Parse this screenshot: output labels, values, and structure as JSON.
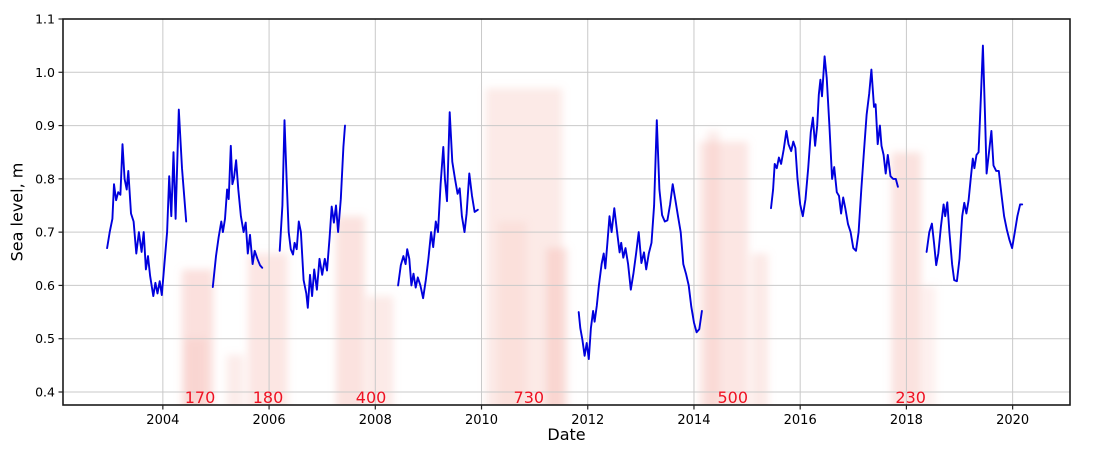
{
  "figure": {
    "background": "#ffffff"
  },
  "chart_data": {
    "type": "line",
    "title": "",
    "xlabel": "Date",
    "ylabel": "Sea level, m",
    "x_ticks": [
      2004,
      2006,
      2008,
      2010,
      2012,
      2014,
      2016,
      2018,
      2020
    ],
    "y_ticks": [
      0.4,
      0.5,
      0.6,
      0.7,
      0.8,
      0.9,
      1.0,
      1.1
    ],
    "xlim": [
      2002.12,
      2021.08
    ],
    "ylim": [
      0.3756,
      1.1
    ],
    "grid": true,
    "grid_color": "#c9c9c9",
    "spine_color": "#1a1a1a",
    "line_color": "#0000dd",
    "annotation_color": "#ee1122",
    "gap_band_color": "#f5b2aa",
    "annotations": [
      {
        "text": "170",
        "x": 2004.7,
        "y": 0.381
      },
      {
        "text": "180",
        "x": 2005.98,
        "y": 0.381
      },
      {
        "text": "400",
        "x": 2007.92,
        "y": 0.381
      },
      {
        "text": "730",
        "x": 2010.89,
        "y": 0.381
      },
      {
        "text": "500",
        "x": 2014.73,
        "y": 0.381
      },
      {
        "text": "230",
        "x": 2018.08,
        "y": 0.381
      }
    ],
    "gap_bands": [
      {
        "x0": 2004.36,
        "x1": 2004.95,
        "top": 0.63,
        "opacity": 0.4
      },
      {
        "x0": 2004.42,
        "x1": 2004.82,
        "top": 0.5,
        "opacity": 0.25
      },
      {
        "x0": 2005.2,
        "x1": 2005.52,
        "top": 0.47,
        "opacity": 0.25
      },
      {
        "x0": 2005.6,
        "x1": 2006.35,
        "top": 0.66,
        "opacity": 0.33
      },
      {
        "x0": 2007.26,
        "x1": 2007.8,
        "top": 0.73,
        "opacity": 0.38
      },
      {
        "x0": 2007.84,
        "x1": 2008.34,
        "top": 0.58,
        "opacity": 0.28
      },
      {
        "x0": 2010.08,
        "x1": 2011.52,
        "top": 0.97,
        "opacity": 0.28
      },
      {
        "x0": 2010.3,
        "x1": 2010.85,
        "top": 0.72,
        "opacity": 0.2
      },
      {
        "x0": 2011.22,
        "x1": 2011.62,
        "top": 0.67,
        "opacity": 0.38
      },
      {
        "x0": 2014.1,
        "x1": 2015.02,
        "top": 0.87,
        "opacity": 0.33
      },
      {
        "x0": 2014.24,
        "x1": 2014.48,
        "top": 0.89,
        "opacity": 0.25
      },
      {
        "x0": 2015.08,
        "x1": 2015.4,
        "top": 0.66,
        "opacity": 0.28
      },
      {
        "x0": 2017.72,
        "x1": 2018.28,
        "top": 0.85,
        "opacity": 0.38
      },
      {
        "x0": 2018.3,
        "x1": 2018.55,
        "top": 0.6,
        "opacity": 0.2
      }
    ],
    "segments": [
      [
        [
          2002.95,
          0.67
        ],
        [
          2003.0,
          0.7
        ],
        [
          2003.05,
          0.725
        ],
        [
          2003.08,
          0.79
        ],
        [
          2003.12,
          0.76
        ],
        [
          2003.16,
          0.775
        ],
        [
          2003.2,
          0.77
        ],
        [
          2003.24,
          0.865
        ],
        [
          2003.28,
          0.8
        ],
        [
          2003.32,
          0.78
        ],
        [
          2003.35,
          0.815
        ],
        [
          2003.4,
          0.735
        ],
        [
          2003.45,
          0.72
        ],
        [
          2003.5,
          0.66
        ],
        [
          2003.55,
          0.7
        ],
        [
          2003.6,
          0.663
        ],
        [
          2003.64,
          0.7
        ],
        [
          2003.68,
          0.63
        ],
        [
          2003.72,
          0.655
        ],
        [
          2003.76,
          0.618
        ],
        [
          2003.82,
          0.58
        ],
        [
          2003.86,
          0.605
        ],
        [
          2003.9,
          0.585
        ],
        [
          2003.94,
          0.608
        ],
        [
          2003.98,
          0.582
        ],
        [
          2004.03,
          0.64
        ],
        [
          2004.08,
          0.7
        ],
        [
          2004.12,
          0.805
        ],
        [
          2004.16,
          0.73
        ],
        [
          2004.2,
          0.85
        ],
        [
          2004.24,
          0.725
        ],
        [
          2004.3,
          0.93
        ],
        [
          2004.36,
          0.82
        ],
        [
          2004.44,
          0.72
        ]
      ],
      [
        [
          2004.94,
          0.597
        ],
        [
          2005.0,
          0.655
        ],
        [
          2005.05,
          0.69
        ],
        [
          2005.1,
          0.72
        ],
        [
          2005.13,
          0.7
        ],
        [
          2005.17,
          0.725
        ],
        [
          2005.21,
          0.78
        ],
        [
          2005.24,
          0.762
        ],
        [
          2005.28,
          0.862
        ],
        [
          2005.31,
          0.79
        ],
        [
          2005.34,
          0.802
        ],
        [
          2005.38,
          0.835
        ],
        [
          2005.42,
          0.78
        ],
        [
          2005.47,
          0.73
        ],
        [
          2005.52,
          0.7
        ],
        [
          2005.56,
          0.718
        ],
        [
          2005.6,
          0.66
        ],
        [
          2005.64,
          0.695
        ],
        [
          2005.69,
          0.64
        ],
        [
          2005.73,
          0.665
        ],
        [
          2005.78,
          0.65
        ],
        [
          2005.83,
          0.638
        ],
        [
          2005.87,
          0.633
        ]
      ],
      [
        [
          2006.2,
          0.665
        ],
        [
          2006.25,
          0.75
        ],
        [
          2006.29,
          0.91
        ],
        [
          2006.33,
          0.8
        ],
        [
          2006.37,
          0.7
        ],
        [
          2006.41,
          0.668
        ],
        [
          2006.45,
          0.658
        ],
        [
          2006.48,
          0.68
        ],
        [
          2006.52,
          0.668
        ],
        [
          2006.56,
          0.72
        ],
        [
          2006.6,
          0.7
        ],
        [
          2006.65,
          0.61
        ],
        [
          2006.7,
          0.585
        ],
        [
          2006.73,
          0.558
        ],
        [
          2006.77,
          0.62
        ],
        [
          2006.81,
          0.58
        ],
        [
          2006.85,
          0.63
        ],
        [
          2006.9,
          0.592
        ],
        [
          2006.95,
          0.65
        ],
        [
          2007.0,
          0.62
        ],
        [
          2007.05,
          0.65
        ],
        [
          2007.09,
          0.628
        ],
        [
          2007.14,
          0.69
        ],
        [
          2007.18,
          0.748
        ],
        [
          2007.22,
          0.718
        ],
        [
          2007.26,
          0.75
        ],
        [
          2007.3,
          0.7
        ],
        [
          2007.35,
          0.762
        ],
        [
          2007.4,
          0.86
        ],
        [
          2007.43,
          0.9
        ]
      ],
      [
        [
          2008.43,
          0.6
        ],
        [
          2008.48,
          0.638
        ],
        [
          2008.53,
          0.655
        ],
        [
          2008.57,
          0.64
        ],
        [
          2008.6,
          0.668
        ],
        [
          2008.64,
          0.65
        ],
        [
          2008.68,
          0.6
        ],
        [
          2008.72,
          0.622
        ],
        [
          2008.76,
          0.596
        ],
        [
          2008.8,
          0.615
        ],
        [
          2008.85,
          0.6
        ],
        [
          2008.9,
          0.576
        ],
        [
          2008.95,
          0.61
        ],
        [
          2009.0,
          0.65
        ],
        [
          2009.05,
          0.7
        ],
        [
          2009.09,
          0.672
        ],
        [
          2009.14,
          0.72
        ],
        [
          2009.18,
          0.7
        ],
        [
          2009.23,
          0.79
        ],
        [
          2009.28,
          0.86
        ],
        [
          2009.31,
          0.8
        ],
        [
          2009.35,
          0.758
        ],
        [
          2009.4,
          0.925
        ],
        [
          2009.45,
          0.832
        ],
        [
          2009.5,
          0.8
        ],
        [
          2009.55,
          0.772
        ],
        [
          2009.59,
          0.782
        ],
        [
          2009.63,
          0.73
        ],
        [
          2009.68,
          0.7
        ],
        [
          2009.72,
          0.735
        ],
        [
          2009.77,
          0.81
        ],
        [
          2009.82,
          0.768
        ],
        [
          2009.87,
          0.738
        ],
        [
          2009.93,
          0.742
        ]
      ],
      [
        [
          2011.83,
          0.55
        ],
        [
          2011.86,
          0.52
        ],
        [
          2011.9,
          0.498
        ],
        [
          2011.94,
          0.468
        ],
        [
          2011.98,
          0.492
        ],
        [
          2012.02,
          0.462
        ],
        [
          2012.06,
          0.52
        ],
        [
          2012.1,
          0.552
        ],
        [
          2012.13,
          0.532
        ],
        [
          2012.17,
          0.562
        ],
        [
          2012.21,
          0.6
        ],
        [
          2012.26,
          0.64
        ],
        [
          2012.3,
          0.66
        ],
        [
          2012.33,
          0.632
        ],
        [
          2012.37,
          0.68
        ],
        [
          2012.41,
          0.73
        ],
        [
          2012.45,
          0.7
        ],
        [
          2012.5,
          0.745
        ],
        [
          2012.55,
          0.702
        ],
        [
          2012.6,
          0.662
        ],
        [
          2012.63,
          0.68
        ],
        [
          2012.67,
          0.652
        ],
        [
          2012.71,
          0.67
        ],
        [
          2012.76,
          0.64
        ],
        [
          2012.81,
          0.592
        ],
        [
          2012.86,
          0.622
        ],
        [
          2012.91,
          0.66
        ],
        [
          2012.96,
          0.7
        ],
        [
          2013.01,
          0.642
        ],
        [
          2013.06,
          0.662
        ],
        [
          2013.1,
          0.63
        ],
        [
          2013.15,
          0.66
        ],
        [
          2013.2,
          0.68
        ],
        [
          2013.25,
          0.75
        ],
        [
          2013.3,
          0.91
        ],
        [
          2013.35,
          0.78
        ],
        [
          2013.4,
          0.732
        ],
        [
          2013.45,
          0.72
        ],
        [
          2013.5,
          0.722
        ],
        [
          2013.55,
          0.752
        ],
        [
          2013.6,
          0.79
        ],
        [
          2013.65,
          0.76
        ],
        [
          2013.7,
          0.73
        ],
        [
          2013.75,
          0.7
        ],
        [
          2013.8,
          0.64
        ],
        [
          2013.85,
          0.622
        ],
        [
          2013.9,
          0.6
        ],
        [
          2013.95,
          0.56
        ],
        [
          2014.0,
          0.53
        ],
        [
          2014.05,
          0.512
        ],
        [
          2014.1,
          0.518
        ],
        [
          2014.15,
          0.552
        ]
      ],
      [
        [
          2015.45,
          0.745
        ],
        [
          2015.49,
          0.78
        ],
        [
          2015.52,
          0.828
        ],
        [
          2015.56,
          0.82
        ],
        [
          2015.6,
          0.84
        ],
        [
          2015.64,
          0.828
        ],
        [
          2015.69,
          0.855
        ],
        [
          2015.74,
          0.89
        ],
        [
          2015.78,
          0.865
        ],
        [
          2015.83,
          0.852
        ],
        [
          2015.87,
          0.87
        ],
        [
          2015.91,
          0.858
        ],
        [
          2015.95,
          0.8
        ],
        [
          2016.0,
          0.752
        ],
        [
          2016.05,
          0.73
        ],
        [
          2016.1,
          0.762
        ],
        [
          2016.15,
          0.82
        ],
        [
          2016.2,
          0.888
        ],
        [
          2016.24,
          0.915
        ],
        [
          2016.28,
          0.862
        ],
        [
          2016.32,
          0.9
        ],
        [
          2016.35,
          0.958
        ],
        [
          2016.38,
          0.986
        ],
        [
          2016.41,
          0.955
        ],
        [
          2016.46,
          1.03
        ],
        [
          2016.5,
          0.99
        ],
        [
          2016.55,
          0.9
        ],
        [
          2016.6,
          0.8
        ],
        [
          2016.64,
          0.822
        ],
        [
          2016.69,
          0.775
        ],
        [
          2016.73,
          0.768
        ],
        [
          2016.77,
          0.735
        ],
        [
          2016.81,
          0.765
        ],
        [
          2016.85,
          0.745
        ],
        [
          2016.9,
          0.715
        ],
        [
          2016.95,
          0.7
        ],
        [
          2017.0,
          0.67
        ],
        [
          2017.05,
          0.665
        ],
        [
          2017.1,
          0.7
        ],
        [
          2017.15,
          0.78
        ],
        [
          2017.2,
          0.85
        ],
        [
          2017.25,
          0.92
        ],
        [
          2017.3,
          0.96
        ],
        [
          2017.34,
          1.005
        ],
        [
          2017.39,
          0.935
        ],
        [
          2017.42,
          0.94
        ],
        [
          2017.46,
          0.865
        ],
        [
          2017.5,
          0.9
        ],
        [
          2017.53,
          0.862
        ],
        [
          2017.57,
          0.845
        ],
        [
          2017.61,
          0.81
        ],
        [
          2017.65,
          0.845
        ],
        [
          2017.7,
          0.805
        ],
        [
          2017.75,
          0.8
        ],
        [
          2017.8,
          0.8
        ],
        [
          2017.84,
          0.785
        ]
      ],
      [
        [
          2018.38,
          0.663
        ],
        [
          2018.43,
          0.7
        ],
        [
          2018.48,
          0.716
        ],
        [
          2018.52,
          0.68
        ],
        [
          2018.56,
          0.638
        ],
        [
          2018.6,
          0.66
        ],
        [
          2018.65,
          0.71
        ],
        [
          2018.7,
          0.752
        ],
        [
          2018.73,
          0.73
        ],
        [
          2018.77,
          0.756
        ],
        [
          2018.81,
          0.7
        ],
        [
          2018.86,
          0.64
        ],
        [
          2018.9,
          0.61
        ],
        [
          2018.95,
          0.608
        ],
        [
          2019.0,
          0.65
        ],
        [
          2019.05,
          0.73
        ],
        [
          2019.09,
          0.755
        ],
        [
          2019.13,
          0.735
        ],
        [
          2019.17,
          0.76
        ],
        [
          2019.21,
          0.8
        ],
        [
          2019.25,
          0.838
        ],
        [
          2019.28,
          0.82
        ],
        [
          2019.32,
          0.845
        ],
        [
          2019.36,
          0.85
        ],
        [
          2019.4,
          0.95
        ],
        [
          2019.44,
          1.05
        ],
        [
          2019.48,
          0.92
        ],
        [
          2019.51,
          0.81
        ],
        [
          2019.55,
          0.845
        ],
        [
          2019.6,
          0.89
        ],
        [
          2019.64,
          0.825
        ],
        [
          2019.69,
          0.815
        ],
        [
          2019.74,
          0.815
        ],
        [
          2019.79,
          0.77
        ],
        [
          2019.84,
          0.73
        ],
        [
          2019.89,
          0.705
        ],
        [
          2019.94,
          0.685
        ],
        [
          2019.99,
          0.67
        ],
        [
          2020.04,
          0.7
        ],
        [
          2020.09,
          0.73
        ],
        [
          2020.14,
          0.752
        ],
        [
          2020.18,
          0.752
        ]
      ]
    ]
  }
}
